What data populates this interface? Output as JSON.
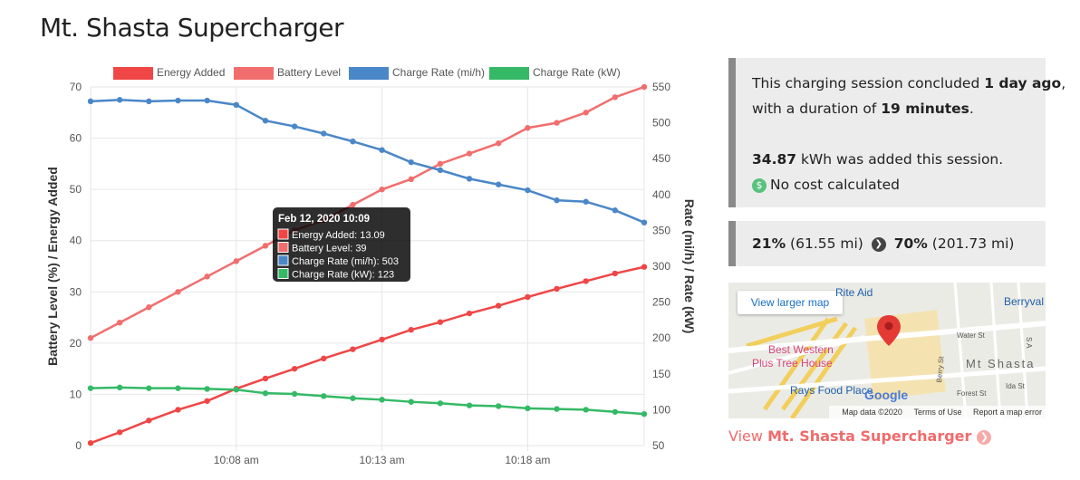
{
  "page": {
    "title": "Mt. Shasta Supercharger"
  },
  "session": {
    "line1_pre": "This charging session concluded ",
    "ago": "1 day ago",
    "line1_post": ",",
    "line2_pre": "with a duration of ",
    "duration": "19 minutes",
    "line2_post": ".",
    "kwh": "34.87",
    "kwh_text": " kWh was added this session.",
    "cost": "No cost calculated",
    "cost_icon": "dollar-icon"
  },
  "battery": {
    "start_pct": "21%",
    "start_mi": "(61.55 mi)",
    "end_pct": "70%",
    "end_mi": "(201.73 mi)"
  },
  "map": {
    "larger_map": "View larger map",
    "labels": {
      "rite_aid": "Rite Aid",
      "berryvale": "Berryval",
      "best_western_1": "Best Western",
      "best_western_2": "Plus Tree House",
      "rays_food": "Rays Food Place",
      "water_st": "Water St",
      "mt_shasta": "Mt Shasta",
      "berry_st": "Berry St",
      "forest_st": "Forest St",
      "ida_st": "Ida St",
      "s_a": "S A"
    },
    "google": "Google",
    "data_credit": "Map data ©2020",
    "terms": "Terms of Use",
    "report": "Report a map error"
  },
  "view_link": {
    "prefix": "View ",
    "name": "Mt. Shasta Supercharger"
  },
  "chart_data": {
    "type": "line",
    "x_labels": [
      "10:08 am",
      "10:13 am",
      "10:18 am"
    ],
    "y_left": {
      "label": "Battery Level (%) / Energy Added",
      "min": 0,
      "max": 70,
      "ticks": [
        0,
        10,
        20,
        30,
        40,
        50,
        60,
        70
      ]
    },
    "y_right": {
      "label": "Rate (mi/h) / Rate (kW)",
      "min": 50,
      "max": 550,
      "ticks": [
        50,
        100,
        150,
        200,
        250,
        300,
        350,
        400,
        450,
        500,
        550
      ]
    },
    "legend_position": "top",
    "grid": true,
    "series": [
      {
        "name": "Energy Added",
        "axis": "left",
        "color": "#f04646",
        "values": [
          0.5,
          2.6,
          4.9,
          7.0,
          8.7,
          11.1,
          13.09,
          15.0,
          17.0,
          18.8,
          20.7,
          22.6,
          24.1,
          25.8,
          27.3,
          29.0,
          30.6,
          32.1,
          33.6,
          34.87
        ]
      },
      {
        "name": "Battery Level",
        "axis": "left",
        "color": "#f26e6e",
        "values": [
          21,
          24,
          27,
          30,
          33,
          36,
          39,
          42,
          44,
          47,
          50,
          52,
          55,
          57,
          59,
          62,
          63,
          65,
          68,
          70
        ]
      },
      {
        "name": "Charge Rate (mi/h)",
        "axis": "right",
        "color": "#4a87c8",
        "values": [
          530,
          532,
          530,
          531,
          531,
          525,
          503,
          495,
          485,
          474,
          462,
          445,
          434,
          422,
          414,
          406,
          392,
          390,
          378,
          361
        ]
      },
      {
        "name": "Charge Rate (kW)",
        "axis": "right",
        "color": "#35b966",
        "values": [
          130,
          131,
          130,
          130,
          129,
          128,
          123,
          122,
          119,
          116,
          114,
          111,
          109,
          106,
          105,
          102,
          101,
          100,
          97,
          94
        ]
      }
    ],
    "tooltip": {
      "title": "Feb 12, 2020 10:09",
      "index": 6,
      "lines": [
        "Energy Added: 13.09",
        "Battery Level: 39",
        "Charge Rate (mi/h): 503",
        "Charge Rate (kW): 123"
      ]
    }
  }
}
